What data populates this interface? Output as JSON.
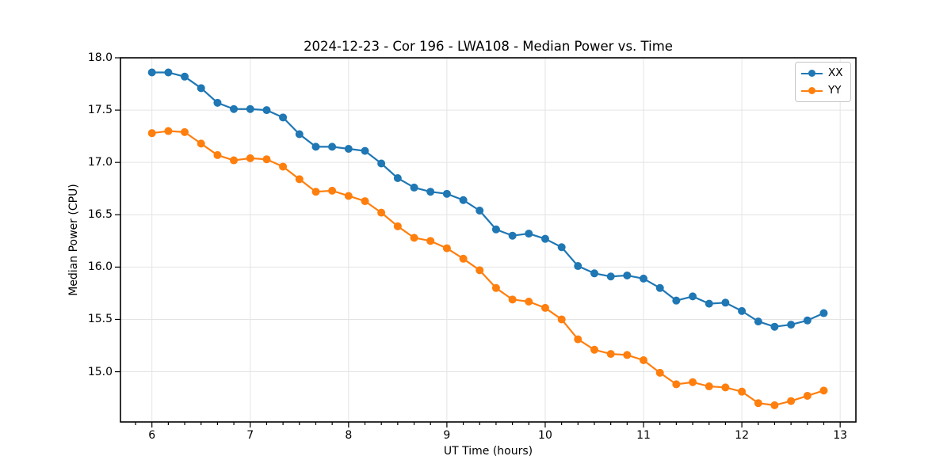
{
  "title": "2024-12-23 - Cor 196 - LWA108 - Median Power vs. Time",
  "axes": {
    "xlabel": "UT Time (hours)",
    "ylabel": "Median Power (CPU)"
  },
  "chart_data": {
    "type": "line",
    "title": "2024-12-23 - Cor 196 - LWA108 - Median Power vs. Time",
    "xlabel": "UT Time (hours)",
    "ylabel": "Median Power (CPU)",
    "marker": "o",
    "grid": true,
    "legend_position": "upper right",
    "xlim": [
      5.68,
      13.16
    ],
    "ylim": [
      14.52,
      18.0
    ],
    "xticks": [
      6,
      7,
      8,
      9,
      10,
      11,
      12,
      13
    ],
    "yticks": [
      15.0,
      15.5,
      16.0,
      16.5,
      17.0,
      17.5,
      18.0
    ],
    "x": [
      6.0,
      6.167,
      6.333,
      6.5,
      6.667,
      6.833,
      7.0,
      7.167,
      7.333,
      7.5,
      7.667,
      7.833,
      8.0,
      8.167,
      8.333,
      8.5,
      8.667,
      8.833,
      9.0,
      9.167,
      9.333,
      9.5,
      9.667,
      9.833,
      10.0,
      10.167,
      10.333,
      10.5,
      10.667,
      10.833,
      11.0,
      11.167,
      11.333,
      11.5,
      11.667,
      11.833,
      12.0,
      12.167,
      12.333,
      12.5,
      12.667,
      12.833
    ],
    "series": [
      {
        "name": "XX",
        "color": "#1f77b4",
        "values": [
          17.86,
          17.86,
          17.82,
          17.71,
          17.57,
          17.51,
          17.51,
          17.5,
          17.43,
          17.27,
          17.15,
          17.15,
          17.13,
          17.11,
          16.99,
          16.85,
          16.76,
          16.72,
          16.7,
          16.64,
          16.54,
          16.36,
          16.3,
          16.32,
          16.27,
          16.19,
          16.01,
          15.94,
          15.91,
          15.92,
          15.89,
          15.8,
          15.68,
          15.72,
          15.65,
          15.66,
          15.58,
          15.48,
          15.43,
          15.45,
          15.49,
          15.56
        ]
      },
      {
        "name": "YY",
        "color": "#ff7f0e",
        "values": [
          17.28,
          17.3,
          17.29,
          17.18,
          17.07,
          17.02,
          17.04,
          17.03,
          16.96,
          16.84,
          16.72,
          16.73,
          16.68,
          16.63,
          16.52,
          16.39,
          16.28,
          16.25,
          16.18,
          16.08,
          15.97,
          15.8,
          15.69,
          15.67,
          15.61,
          15.5,
          15.31,
          15.21,
          15.17,
          15.16,
          15.11,
          14.99,
          14.88,
          14.9,
          14.86,
          14.85,
          14.81,
          14.7,
          14.68,
          14.72,
          14.77,
          14.82
        ]
      }
    ]
  },
  "colors": {
    "grid": "#e4e4e4",
    "spine": "#000000",
    "background": "#ffffff"
  }
}
